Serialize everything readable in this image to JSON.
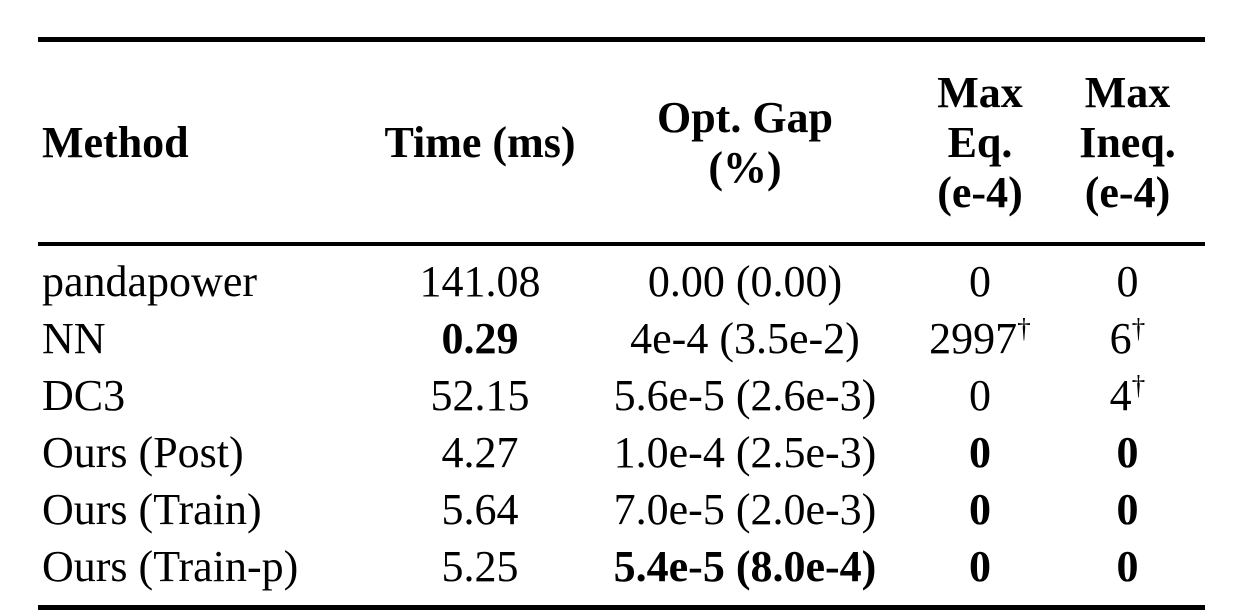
{
  "colors": {
    "text": "#000000",
    "rule": "#000000",
    "background": "#ffffff"
  },
  "table": {
    "headers": [
      {
        "label": "Method",
        "align": "left"
      },
      {
        "label": "Time (ms)",
        "align": "center"
      },
      {
        "label": "Opt. Gap\n(%)",
        "align": "center"
      },
      {
        "label": "Max\nEq.\n(e-4)",
        "align": "center"
      },
      {
        "label": "Max\nIneq.\n(e-4)",
        "align": "center"
      }
    ],
    "rows": [
      {
        "method": {
          "text": "pandapower",
          "bold": false,
          "sup": ""
        },
        "time": {
          "text": "141.08",
          "bold": false,
          "sup": ""
        },
        "opt_gap": {
          "text": "0.00 (0.00)",
          "bold": false,
          "sup": ""
        },
        "max_eq": {
          "text": "0",
          "bold": false,
          "sup": ""
        },
        "max_ineq": {
          "text": "0",
          "bold": false,
          "sup": ""
        }
      },
      {
        "method": {
          "text": "NN",
          "bold": false,
          "sup": ""
        },
        "time": {
          "text": "0.29",
          "bold": true,
          "sup": ""
        },
        "opt_gap": {
          "text": "4e-4 (3.5e-2)",
          "bold": false,
          "sup": ""
        },
        "max_eq": {
          "text": "2997",
          "bold": false,
          "sup": "†"
        },
        "max_ineq": {
          "text": "6",
          "bold": false,
          "sup": "†"
        }
      },
      {
        "method": {
          "text": "DC3",
          "bold": false,
          "sup": ""
        },
        "time": {
          "text": "52.15",
          "bold": false,
          "sup": ""
        },
        "opt_gap": {
          "text": "5.6e-5 (2.6e-3)",
          "bold": false,
          "sup": ""
        },
        "max_eq": {
          "text": "0",
          "bold": false,
          "sup": ""
        },
        "max_ineq": {
          "text": "4",
          "bold": false,
          "sup": "†"
        }
      },
      {
        "method": {
          "text": "Ours (Post)",
          "bold": false,
          "sup": ""
        },
        "time": {
          "text": "4.27",
          "bold": false,
          "sup": ""
        },
        "opt_gap": {
          "text": "1.0e-4 (2.5e-3)",
          "bold": false,
          "sup": ""
        },
        "max_eq": {
          "text": "0",
          "bold": true,
          "sup": ""
        },
        "max_ineq": {
          "text": "0",
          "bold": true,
          "sup": ""
        }
      },
      {
        "method": {
          "text": "Ours (Train)",
          "bold": false,
          "sup": ""
        },
        "time": {
          "text": "5.64",
          "bold": false,
          "sup": ""
        },
        "opt_gap": {
          "text": "7.0e-5 (2.0e-3)",
          "bold": false,
          "sup": ""
        },
        "max_eq": {
          "text": "0",
          "bold": true,
          "sup": ""
        },
        "max_ineq": {
          "text": "0",
          "bold": true,
          "sup": ""
        }
      },
      {
        "method": {
          "text": "Ours (Train-p)",
          "bold": false,
          "sup": ""
        },
        "time": {
          "text": "5.25",
          "bold": false,
          "sup": ""
        },
        "opt_gap": {
          "text": "5.4e-5 (8.0e-4)",
          "bold": true,
          "sup": ""
        },
        "max_eq": {
          "text": "0",
          "bold": true,
          "sup": ""
        },
        "max_ineq": {
          "text": "0",
          "bold": true,
          "sup": ""
        }
      }
    ]
  }
}
